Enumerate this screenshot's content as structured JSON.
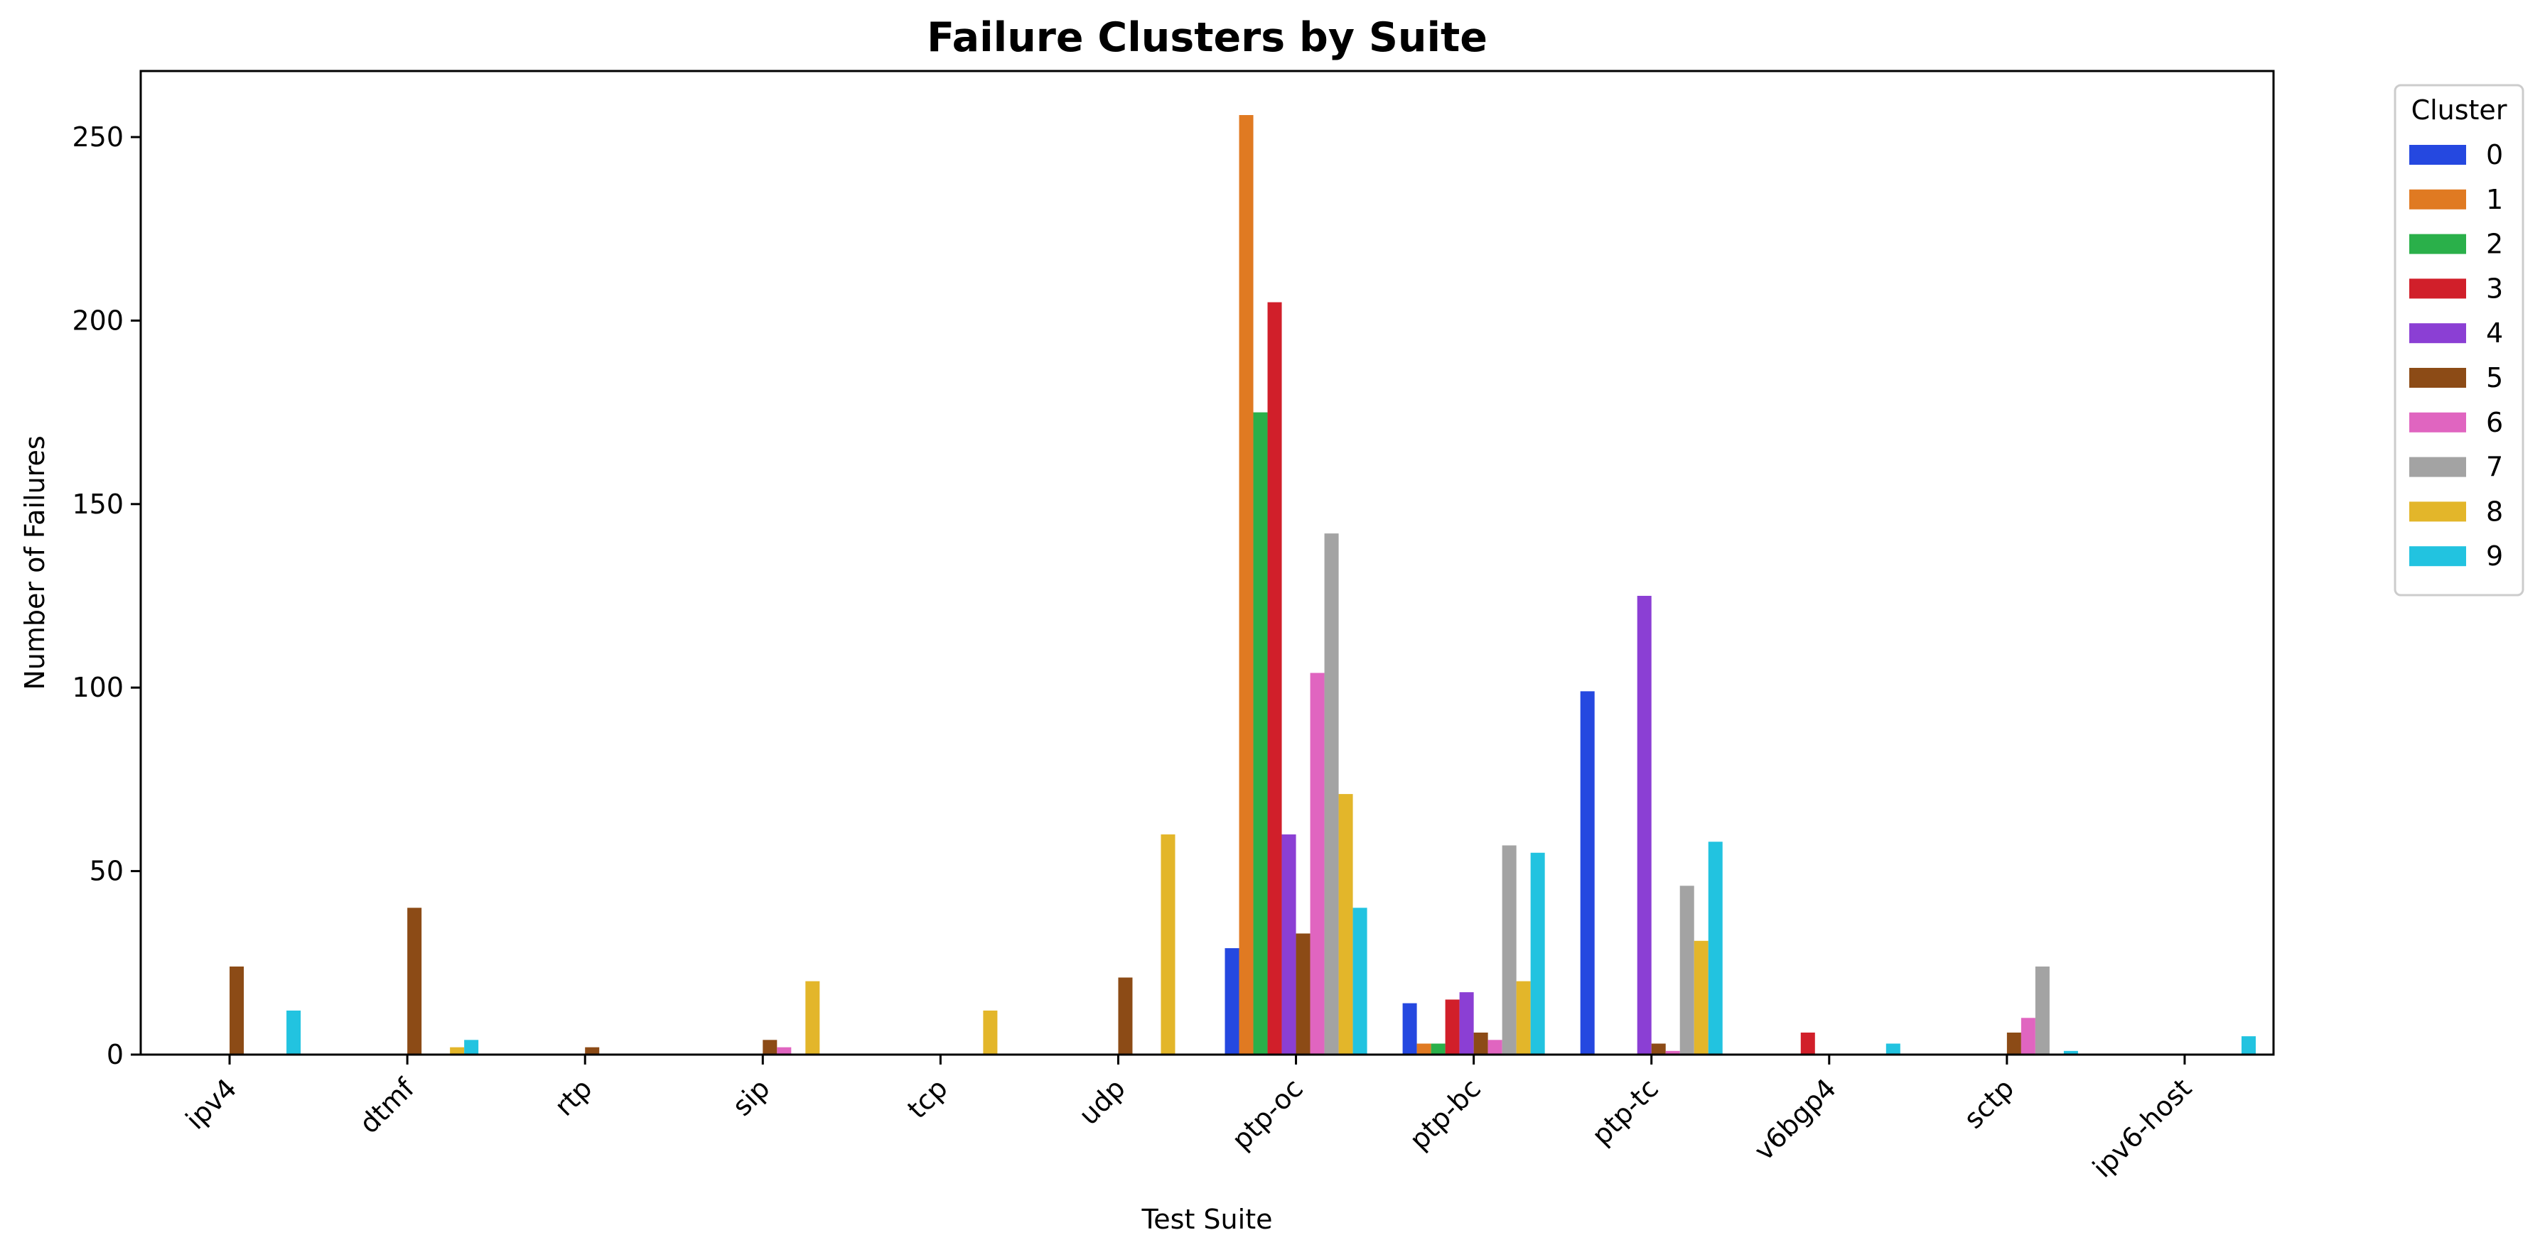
{
  "chart_data": {
    "type": "bar",
    "title": "Failure Clusters by Suite",
    "xlabel": "Test Suite",
    "ylabel": "Number of Failures",
    "ylim": [
      0,
      268
    ],
    "yticks": [
      0,
      50,
      100,
      150,
      200,
      250
    ],
    "grid": false,
    "legend": {
      "title": "Cluster",
      "placement": "outside-top-right"
    },
    "categories": [
      "ipv4",
      "dtmf",
      "rtp",
      "sip",
      "tcp",
      "udp",
      "ptp-oc",
      "ptp-bc",
      "ptp-tc",
      "v6bgp4",
      "sctp",
      "ipv6-host"
    ],
    "series": [
      {
        "name": "0",
        "color": "#2548e0",
        "values": [
          0,
          0,
          0,
          0,
          0,
          0,
          29,
          14,
          99,
          0,
          0,
          0
        ]
      },
      {
        "name": "1",
        "color": "#e07a22",
        "values": [
          0,
          0,
          0,
          0,
          0,
          0,
          256,
          3,
          0,
          0,
          0,
          0
        ]
      },
      {
        "name": "2",
        "color": "#2ab04a",
        "values": [
          0,
          0,
          0,
          0,
          0,
          0,
          175,
          3,
          0,
          0,
          0,
          0
        ]
      },
      {
        "name": "3",
        "color": "#d11f2a",
        "values": [
          0,
          0,
          0,
          0,
          0,
          0,
          205,
          15,
          0,
          6,
          0,
          0
        ]
      },
      {
        "name": "4",
        "color": "#8b3fd4",
        "values": [
          0,
          0,
          0,
          0,
          0,
          0,
          60,
          17,
          125,
          0,
          0,
          0
        ]
      },
      {
        "name": "5",
        "color": "#8c4b16",
        "values": [
          24,
          40,
          2,
          4,
          0,
          21,
          33,
          6,
          3,
          0,
          6,
          0
        ]
      },
      {
        "name": "6",
        "color": "#e065c0",
        "values": [
          0,
          0,
          0,
          2,
          0,
          0,
          104,
          4,
          1,
          0,
          10,
          0
        ]
      },
      {
        "name": "7",
        "color": "#a3a3a3",
        "values": [
          0,
          0,
          0,
          0,
          0,
          0,
          142,
          57,
          46,
          0,
          24,
          0
        ]
      },
      {
        "name": "8",
        "color": "#e3b62a",
        "values": [
          0,
          2,
          0,
          20,
          12,
          60,
          71,
          20,
          31,
          0,
          0,
          0
        ]
      },
      {
        "name": "9",
        "color": "#22c3e0",
        "values": [
          12,
          4,
          0,
          0,
          0,
          0,
          40,
          55,
          58,
          3,
          1,
          5
        ]
      }
    ]
  }
}
